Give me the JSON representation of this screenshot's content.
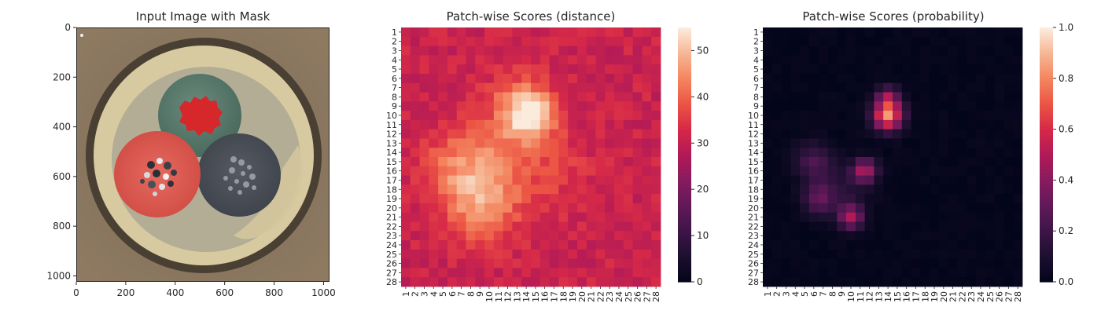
{
  "chart_data": [
    {
      "type": "image",
      "title": "Input Image with Mask",
      "xlabel": "",
      "ylabel": "",
      "x_ticks": [
        0,
        200,
        400,
        600,
        800,
        1000
      ],
      "y_ticks": [
        0,
        200,
        400,
        600,
        800,
        1000
      ],
      "xlim": [
        0,
        1024
      ],
      "ylim": [
        1024,
        0
      ],
      "grid": false,
      "colors": {
        "background": "#8a7862",
        "dish_outer": "#4a4034",
        "dish_ring": "#d9cba2",
        "dish_inner": "#b7b098",
        "teal_disc": "#5b7a6c",
        "red_mask": "#d6272b",
        "red_disc": "#de5c52",
        "grey_disc": "#4c5058"
      }
    },
    {
      "type": "heatmap",
      "title": "Patch-wise Scores (distance)",
      "xlabel": "",
      "ylabel": "",
      "grid_size": 28,
      "x_tick_labels": [
        "1",
        "2",
        "3",
        "4",
        "5",
        "6",
        "7",
        "8",
        "9",
        "10",
        "11",
        "12",
        "13",
        "14",
        "15",
        "16",
        "17",
        "18",
        "19",
        "20",
        "21",
        "22",
        "23",
        "24",
        "25",
        "26",
        "27",
        "28"
      ],
      "y_tick_labels": [
        "1",
        "2",
        "3",
        "4",
        "5",
        "6",
        "7",
        "8",
        "9",
        "10",
        "11",
        "12",
        "13",
        "14",
        "15",
        "16",
        "17",
        "18",
        "19",
        "20",
        "21",
        "22",
        "23",
        "24",
        "25",
        "26",
        "27",
        "28"
      ],
      "colorbar_range": [
        0,
        55
      ],
      "colorbar_ticks": [
        0,
        10,
        20,
        30,
        40,
        50
      ],
      "colormap": "rocket",
      "base_value": 31,
      "hotspots": [
        {
          "row": 10,
          "col": 14.5,
          "peak": 22,
          "spread": 1.8
        },
        {
          "row": 9,
          "col": 13,
          "peak": 9,
          "spread": 2.6
        },
        {
          "row": 16,
          "col": 10,
          "peak": 11,
          "spread": 3.2
        },
        {
          "row": 19,
          "col": 8,
          "peak": 8,
          "spread": 2.8
        },
        {
          "row": 15,
          "col": 6,
          "peak": 6,
          "spread": 2.5
        },
        {
          "row": 21,
          "col": 10,
          "peak": 6,
          "spread": 2.2
        },
        {
          "row": 16,
          "col": 17,
          "peak": 4,
          "spread": 3.0
        }
      ]
    },
    {
      "type": "heatmap",
      "title": "Patch-wise Scores (probability)",
      "xlabel": "",
      "ylabel": "",
      "grid_size": 28,
      "x_tick_labels": [
        "1",
        "2",
        "3",
        "4",
        "5",
        "6",
        "7",
        "8",
        "9",
        "10",
        "11",
        "12",
        "13",
        "14",
        "15",
        "16",
        "17",
        "18",
        "19",
        "20",
        "21",
        "22",
        "23",
        "24",
        "25",
        "26",
        "27",
        "28"
      ],
      "y_tick_labels": [
        "1",
        "2",
        "3",
        "4",
        "5",
        "6",
        "7",
        "8",
        "9",
        "10",
        "11",
        "12",
        "13",
        "14",
        "15",
        "16",
        "17",
        "18",
        "19",
        "20",
        "21",
        "22",
        "23",
        "24",
        "25",
        "26",
        "27",
        "28"
      ],
      "colorbar_range": [
        0,
        1
      ],
      "colorbar_ticks": [
        0.0,
        0.2,
        0.4,
        0.6,
        0.8,
        1.0
      ],
      "colorbar_tick_labels": [
        "0.0",
        "0.2",
        "0.4",
        "0.6",
        "0.8",
        "1.0"
      ],
      "colormap": "rocket",
      "base_value": 0.01,
      "hotspots": [
        {
          "row": 10,
          "col": 14,
          "peak": 0.82,
          "spread": 1.1
        },
        {
          "row": 8,
          "col": 14,
          "peak": 0.35,
          "spread": 0.8
        },
        {
          "row": 16,
          "col": 11.5,
          "peak": 0.45,
          "spread": 0.9
        },
        {
          "row": 21,
          "col": 10,
          "peak": 0.45,
          "spread": 0.9
        },
        {
          "row": 15,
          "col": 6,
          "peak": 0.22,
          "spread": 1.4
        },
        {
          "row": 19,
          "col": 6.5,
          "peak": 0.25,
          "spread": 1.2
        },
        {
          "row": 18,
          "col": 9,
          "peak": 0.12,
          "spread": 2.0
        }
      ]
    }
  ]
}
